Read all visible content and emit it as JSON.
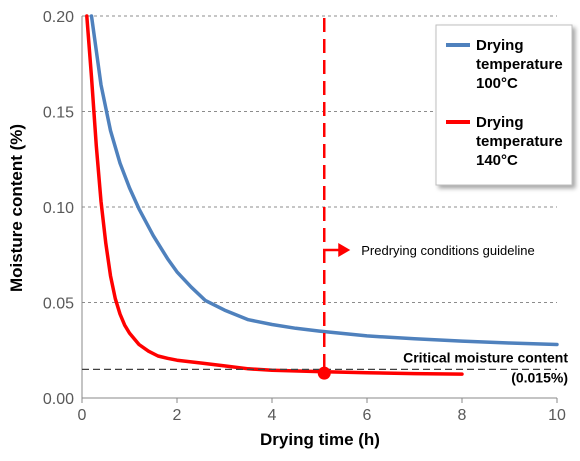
{
  "chart_data": {
    "type": "line",
    "xlabel": "Drying time (h)",
    "ylabel": "Moisture content (%)",
    "xlim": [
      0,
      10
    ],
    "ylim": [
      0,
      0.2
    ],
    "x_ticks": [
      "0",
      "2",
      "4",
      "6",
      "8",
      "10"
    ],
    "y_ticks": [
      "0.00",
      "0.05",
      "0.10",
      "0.15",
      "0.20"
    ],
    "grid": "horizontal dashed",
    "legend_position": "top-right",
    "series": [
      {
        "name": "Drying temperature 100°C",
        "legend_lines": [
          "Drying",
          "temperature",
          "100°C"
        ],
        "color": "#4f81bd",
        "x": [
          0.2,
          0.4,
          0.6,
          0.8,
          1.0,
          1.2,
          1.5,
          1.8,
          2.0,
          2.3,
          2.6,
          3.0,
          3.5,
          4.0,
          4.5,
          5.0,
          6.0,
          7.0,
          8.0,
          9.0,
          10.0
        ],
        "y": [
          0.2,
          0.164,
          0.14,
          0.123,
          0.11,
          0.099,
          0.085,
          0.073,
          0.066,
          0.058,
          0.051,
          0.046,
          0.041,
          0.0385,
          0.0365,
          0.035,
          0.0325,
          0.031,
          0.0298,
          0.0288,
          0.028
        ]
      },
      {
        "name": "Drying temperature 140°C",
        "legend_lines": [
          "Drying",
          "temperature",
          "140°C"
        ],
        "color": "#ff0000",
        "x": [
          0.1,
          0.2,
          0.3,
          0.4,
          0.5,
          0.6,
          0.7,
          0.8,
          0.9,
          1.0,
          1.2,
          1.4,
          1.6,
          1.8,
          2.0,
          2.5,
          3.0,
          3.5,
          4.0,
          5.0,
          6.0,
          7.0,
          8.0
        ],
        "y": [
          0.2,
          0.168,
          0.132,
          0.103,
          0.081,
          0.064,
          0.052,
          0.044,
          0.038,
          0.034,
          0.028,
          0.0245,
          0.022,
          0.0208,
          0.0198,
          0.0183,
          0.0168,
          0.0153,
          0.0145,
          0.0138,
          0.0132,
          0.0128,
          0.0125
        ]
      }
    ],
    "annotations": {
      "guideline_label": "Predrying conditions guideline",
      "guideline_x": 5.1,
      "critical_label": "Critical moisture content",
      "critical_value_label": "(0.015%)",
      "critical_y": 0.015,
      "marker_x": 5.1,
      "marker_y": 0.013
    }
  }
}
